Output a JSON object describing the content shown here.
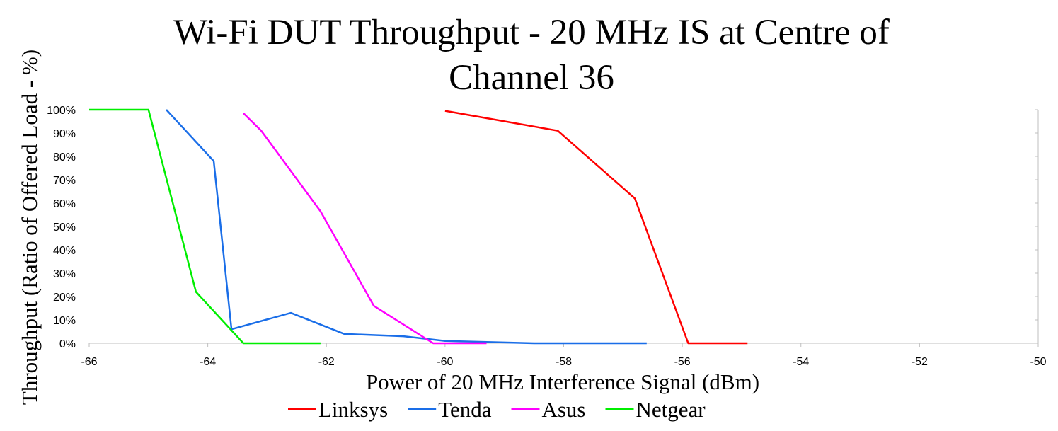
{
  "chart_data": {
    "type": "line",
    "title_lines": [
      "Wi-Fi DUT Throughput - 20 MHz IS at Centre of",
      "Channel 36"
    ],
    "xlabel": "Power of 20 MHz Interference Signal (dBm)",
    "ylabel": "Throughput (Ratio of Offered Load - %)",
    "xlim": [
      -66,
      -50
    ],
    "ylim": [
      0,
      100
    ],
    "x_ticks": [
      -66,
      -64,
      -62,
      -60,
      -58,
      -56,
      -54,
      -52,
      -50
    ],
    "x_tick_labels": [
      "-66",
      "-64",
      "-62",
      "-60",
      "-58",
      "-56",
      "-54",
      "-52",
      "-50"
    ],
    "y_ticks": [
      0,
      10,
      20,
      30,
      40,
      50,
      60,
      70,
      80,
      90,
      100
    ],
    "y_tick_labels": [
      "0%",
      "10%",
      "20%",
      "30%",
      "40%",
      "50%",
      "60%",
      "70%",
      "80%",
      "90%",
      "100%"
    ],
    "grid": false,
    "legend_position": "bottom",
    "series": [
      {
        "name": "Linksys",
        "color": "#ff0000",
        "points": [
          [
            -60,
            99.5
          ],
          [
            -58.1,
            91
          ],
          [
            -56.8,
            62
          ],
          [
            -55.9,
            0
          ],
          [
            -54.9,
            0
          ]
        ]
      },
      {
        "name": "Tenda",
        "color": "#1a6ee8",
        "points": [
          [
            -64.7,
            100
          ],
          [
            -63.9,
            78
          ],
          [
            -63.6,
            6
          ],
          [
            -62.6,
            13
          ],
          [
            -61.7,
            4
          ],
          [
            -60.7,
            3
          ],
          [
            -60,
            1
          ],
          [
            -58.5,
            0
          ],
          [
            -56.6,
            0
          ]
        ]
      },
      {
        "name": "Asus",
        "color": "#ff00ff",
        "points": [
          [
            -63.4,
            98.5
          ],
          [
            -63.1,
            91
          ],
          [
            -62.1,
            56.5
          ],
          [
            -61.2,
            16
          ],
          [
            -60.2,
            0
          ],
          [
            -59.3,
            0
          ]
        ]
      },
      {
        "name": "Netgear",
        "color": "#00ee00",
        "points": [
          [
            -66,
            100
          ],
          [
            -65,
            100
          ],
          [
            -64.2,
            22
          ],
          [
            -63.4,
            0
          ],
          [
            -62.1,
            0
          ]
        ]
      }
    ]
  }
}
